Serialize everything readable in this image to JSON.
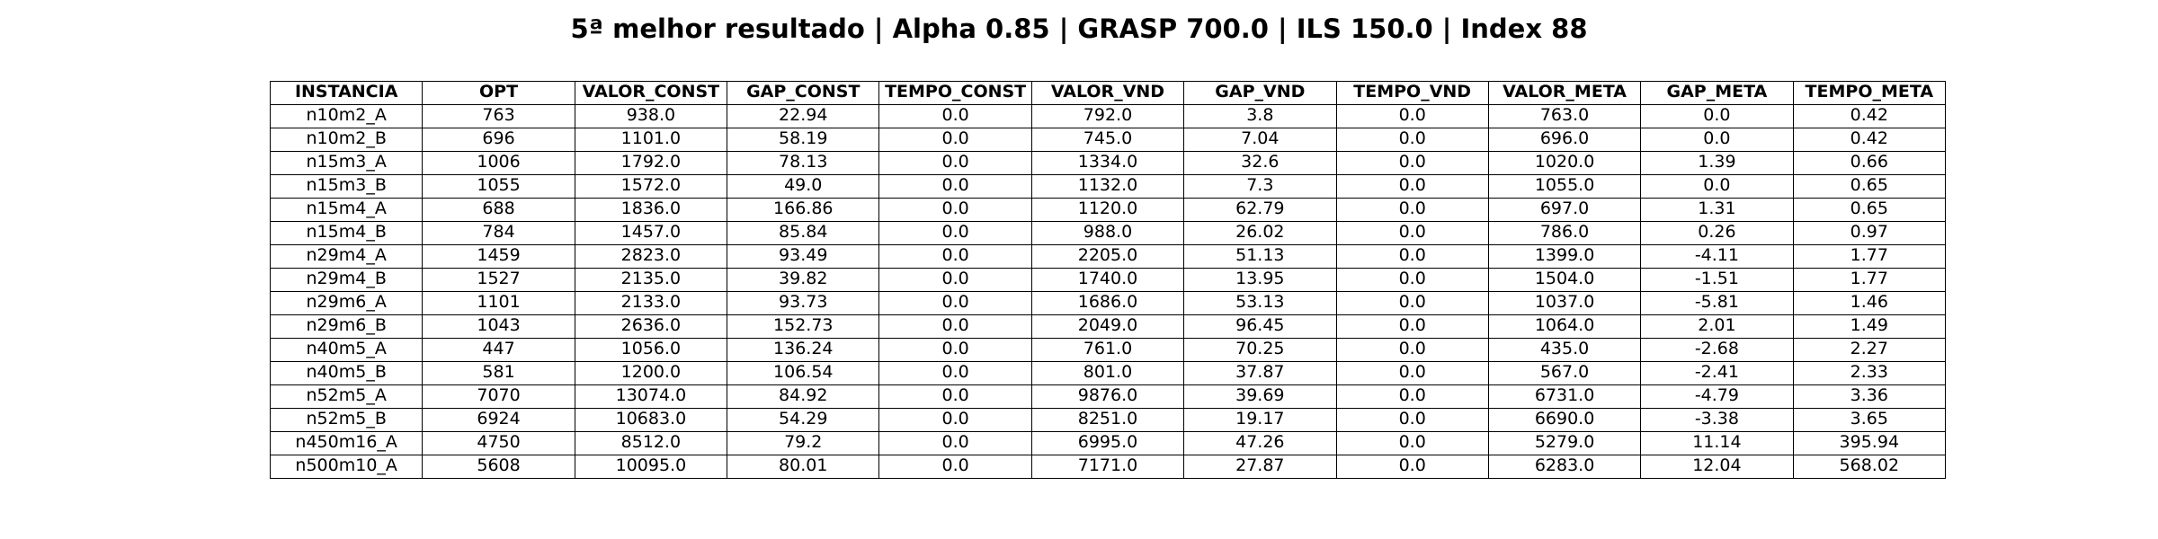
{
  "title": "5ª melhor resultado | Alpha 0.85 | GRASP 700.0 | ILS 150.0 | Index 88",
  "table": {
    "columns": [
      "INSTANCIA",
      "OPT",
      "VALOR_CONST",
      "GAP_CONST",
      "TEMPO_CONST",
      "VALOR_VND",
      "GAP_VND",
      "TEMPO_VND",
      "VALOR_META",
      "GAP_META",
      "TEMPO_META"
    ],
    "rows": [
      [
        "n10m2_A",
        "763",
        "938.0",
        "22.94",
        "0.0",
        "792.0",
        "3.8",
        "0.0",
        "763.0",
        "0.0",
        "0.42"
      ],
      [
        "n10m2_B",
        "696",
        "1101.0",
        "58.19",
        "0.0",
        "745.0",
        "7.04",
        "0.0",
        "696.0",
        "0.0",
        "0.42"
      ],
      [
        "n15m3_A",
        "1006",
        "1792.0",
        "78.13",
        "0.0",
        "1334.0",
        "32.6",
        "0.0",
        "1020.0",
        "1.39",
        "0.66"
      ],
      [
        "n15m3_B",
        "1055",
        "1572.0",
        "49.0",
        "0.0",
        "1132.0",
        "7.3",
        "0.0",
        "1055.0",
        "0.0",
        "0.65"
      ],
      [
        "n15m4_A",
        "688",
        "1836.0",
        "166.86",
        "0.0",
        "1120.0",
        "62.79",
        "0.0",
        "697.0",
        "1.31",
        "0.65"
      ],
      [
        "n15m4_B",
        "784",
        "1457.0",
        "85.84",
        "0.0",
        "988.0",
        "26.02",
        "0.0",
        "786.0",
        "0.26",
        "0.97"
      ],
      [
        "n29m4_A",
        "1459",
        "2823.0",
        "93.49",
        "0.0",
        "2205.0",
        "51.13",
        "0.0",
        "1399.0",
        "-4.11",
        "1.77"
      ],
      [
        "n29m4_B",
        "1527",
        "2135.0",
        "39.82",
        "0.0",
        "1740.0",
        "13.95",
        "0.0",
        "1504.0",
        "-1.51",
        "1.77"
      ],
      [
        "n29m6_A",
        "1101",
        "2133.0",
        "93.73",
        "0.0",
        "1686.0",
        "53.13",
        "0.0",
        "1037.0",
        "-5.81",
        "1.46"
      ],
      [
        "n29m6_B",
        "1043",
        "2636.0",
        "152.73",
        "0.0",
        "2049.0",
        "96.45",
        "0.0",
        "1064.0",
        "2.01",
        "1.49"
      ],
      [
        "n40m5_A",
        "447",
        "1056.0",
        "136.24",
        "0.0",
        "761.0",
        "70.25",
        "0.0",
        "435.0",
        "-2.68",
        "2.27"
      ],
      [
        "n40m5_B",
        "581",
        "1200.0",
        "106.54",
        "0.0",
        "801.0",
        "37.87",
        "0.0",
        "567.0",
        "-2.41",
        "2.33"
      ],
      [
        "n52m5_A",
        "7070",
        "13074.0",
        "84.92",
        "0.0",
        "9876.0",
        "39.69",
        "0.0",
        "6731.0",
        "-4.79",
        "3.36"
      ],
      [
        "n52m5_B",
        "6924",
        "10683.0",
        "54.29",
        "0.0",
        "8251.0",
        "19.17",
        "0.0",
        "6690.0",
        "-3.38",
        "3.65"
      ],
      [
        "n450m16_A",
        "4750",
        "8512.0",
        "79.2",
        "0.0",
        "6995.0",
        "47.26",
        "0.0",
        "5279.0",
        "11.14",
        "395.94"
      ],
      [
        "n500m10_A",
        "5608",
        "10095.0",
        "80.01",
        "0.0",
        "7171.0",
        "27.87",
        "0.0",
        "6283.0",
        "12.04",
        "568.02"
      ]
    ]
  }
}
